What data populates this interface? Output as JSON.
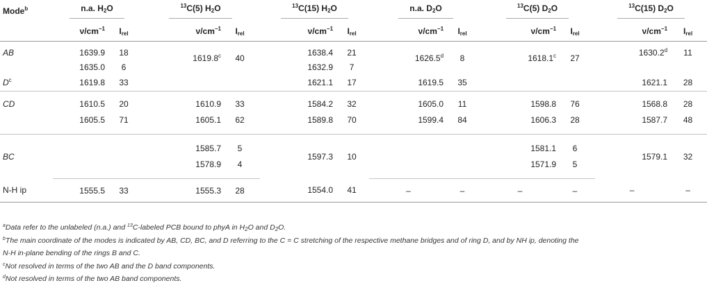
{
  "header": {
    "mode": "Mode",
    "mode_sup": "b",
    "groups": [
      {
        "pre_sup": "",
        "text": "n.a. H",
        "sub": "2",
        "post": "O"
      },
      {
        "pre_sup": "13",
        "text": "C(5) H",
        "sub": "2",
        "post": "O"
      },
      {
        "pre_sup": "13",
        "text": "C(15) H",
        "sub": "2",
        "post": "O"
      },
      {
        "pre_sup": "",
        "text": "n.a. D",
        "sub": "2",
        "post": "O"
      },
      {
        "pre_sup": "13",
        "text": "C(5) D",
        "sub": "2",
        "post": "O"
      },
      {
        "pre_sup": "13",
        "text": "C(15) D",
        "sub": "2",
        "post": "O"
      }
    ],
    "nu": "ν/cm",
    "nu_sup": "−1",
    "irel": "I",
    "irel_sub": "rel"
  },
  "modes": {
    "AB": "AB",
    "D": "D",
    "D_sup": "c",
    "CD": "CD",
    "BC": "BC",
    "NH": "N-H ip"
  },
  "rows": {
    "ab1": [
      "1639.9",
      "18",
      "1638.4",
      "21"
    ],
    "ab2": [
      "1635.0",
      "6",
      "1632.9",
      "7"
    ],
    "ab_merged": {
      "c5h": "1619.8",
      "c5h_sup": "c",
      "c5h_i": "40",
      "nad": "1626.5",
      "nad_sup": "d",
      "nad_i": "8",
      "c5d": "1618.1",
      "c5d_sup": "c",
      "c5d_i": "27",
      "c15d": "1630.2",
      "c15d_sup": "d",
      "c15d_i": "11"
    },
    "d": [
      "1619.8",
      "33",
      "1621.1",
      "17",
      "1619.5",
      "35",
      "1621.1",
      "28"
    ],
    "cd1": [
      "1610.5",
      "20",
      "1610.9",
      "33",
      "1584.2",
      "32",
      "1605.0",
      "11",
      "1598.8",
      "76",
      "1568.8",
      "28"
    ],
    "cd2": [
      "1605.5",
      "71",
      "1605.1",
      "62",
      "1589.8",
      "70",
      "1599.4",
      "84",
      "1606.3",
      "28",
      "1587.7",
      "48"
    ],
    "bc1": [
      "1585.7",
      "5",
      "1581.1",
      "6"
    ],
    "bc2": [
      "1578.9",
      "4",
      "1571.9",
      "5"
    ],
    "bc_merged": [
      "1597.3",
      "10",
      "1579.1",
      "32"
    ],
    "nh": [
      "1555.5",
      "33",
      "1555.3",
      "28",
      "1554.0",
      "41",
      "–",
      "–",
      "–",
      "–",
      "–",
      "–"
    ]
  },
  "footnotes": [
    {
      "sup": "a",
      "parts": [
        "Data refer to the unlabeled (n.a.) and ",
        "13",
        "C-labeled PCB bound to phyA in H",
        "2",
        "O and D",
        "2",
        "O."
      ]
    },
    {
      "sup": "b",
      "text": "The main coordinate of the modes is indicated by AB, CD, BC, and D referring to the C = C stretching of the respective methane bridges and of ring D, and by NH ip, denoting the"
    },
    {
      "text": "N-H in-plane bending of the rings B and C."
    },
    {
      "sup": "c",
      "text": "Not resolved in terms of the two AB and the D band components."
    },
    {
      "sup": "d",
      "text": "Not resolved in terms of the two AB band components."
    }
  ]
}
